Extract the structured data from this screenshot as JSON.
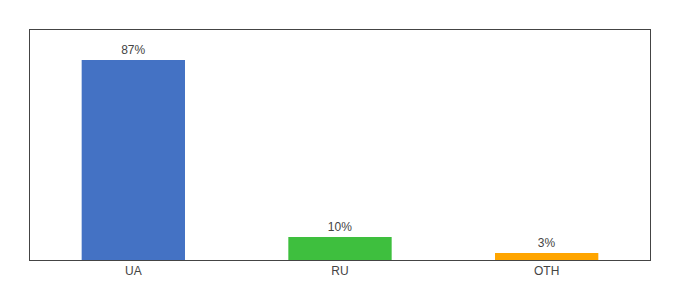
{
  "chart_data": {
    "type": "bar",
    "categories": [
      "UA",
      "RU",
      "OTH"
    ],
    "values": [
      87,
      10,
      3
    ],
    "value_labels": [
      "87%",
      "10%",
      "3%"
    ],
    "data_labels": true,
    "colors": [
      "#4472C4",
      "#3EBF3E",
      "#FFA500"
    ],
    "ylim": [
      0,
      100
    ],
    "tick_labels": "x",
    "grid": false
  }
}
